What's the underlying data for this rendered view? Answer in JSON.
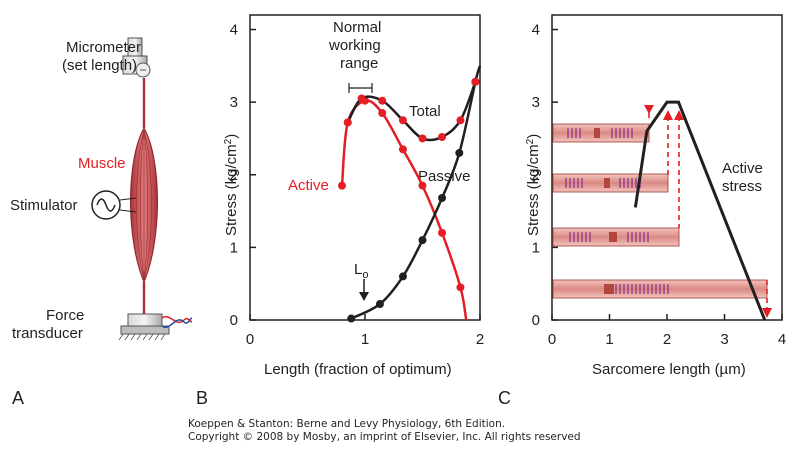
{
  "panel_a": {
    "label": "A",
    "micrometer": [
      "Micrometer",
      "(set length)"
    ],
    "muscle": "Muscle",
    "stimulator": "Stimulator",
    "transducer": [
      "Force",
      "transducer"
    ]
  },
  "panel_b": {
    "label": "B",
    "ylabel": "Stress (kg/cm",
    "ylabel_sup": "2",
    "ylabel_end": ")",
    "xlabel": "Length (fraction of optimum)",
    "yticks": [
      "0",
      "1",
      "2",
      "3",
      "4"
    ],
    "xticks": [
      "0",
      "1",
      "2"
    ],
    "range_label": [
      "Normal",
      "working",
      "range"
    ],
    "total": "Total",
    "passive": "Passive",
    "active": "Active",
    "lo": "L",
    "lo_sub": "o"
  },
  "panel_c": {
    "label": "C",
    "ylabel": "Stress (kg/cm",
    "ylabel_sup": "2",
    "ylabel_end": ")",
    "xlabel": "Sarcomere length (µm)",
    "yticks": [
      "0",
      "1",
      "2",
      "3",
      "4"
    ],
    "xticks": [
      "0",
      "1",
      "2",
      "3",
      "4"
    ],
    "active_stress": [
      "Active",
      "stress"
    ]
  },
  "credit": [
    "Koeppen & Stanton: Berne and Levy Physiology, 6th Edition.",
    "Copyright © 2008 by Mosby, an imprint of Elsevier, Inc. All rights reserved"
  ],
  "colors": {
    "red": "#e31e24",
    "black": "#231f20",
    "muscle": "#c44a4a",
    "sarcomere": "#e8a5a0"
  },
  "chart_data": [
    {
      "type": "line",
      "xlim": [
        0,
        2
      ],
      "ylim": [
        0,
        4
      ],
      "series": [
        {
          "name": "Active",
          "x": [
            0.8,
            0.85,
            1.0,
            1.15,
            1.33,
            1.5,
            1.67,
            1.83
          ],
          "y": [
            1.85,
            2.72,
            3.02,
            2.85,
            2.35,
            1.85,
            1.2,
            0.45
          ]
        },
        {
          "name": "Passive",
          "x": [
            0.88,
            1.13,
            1.33,
            1.5,
            1.67,
            1.82,
            1.96
          ],
          "y": [
            0.02,
            0.22,
            0.6,
            1.1,
            1.68,
            2.3,
            3.28
          ]
        },
        {
          "name": "Total",
          "x": [
            0.85,
            0.97,
            1.15,
            1.33,
            1.5,
            1.67,
            1.83,
            1.96
          ],
          "y": [
            2.72,
            3.05,
            3.02,
            2.75,
            2.5,
            2.52,
            2.75,
            3.28
          ]
        }
      ]
    },
    {
      "type": "line",
      "xlim": [
        0,
        4
      ],
      "ylim": [
        0,
        4
      ],
      "series": [
        {
          "name": "Active stress",
          "x": [
            1.45,
            1.65,
            2.0,
            2.2,
            3.7
          ],
          "y": [
            1.55,
            2.6,
            3.0,
            3.0,
            0.0
          ]
        }
      ]
    }
  ]
}
